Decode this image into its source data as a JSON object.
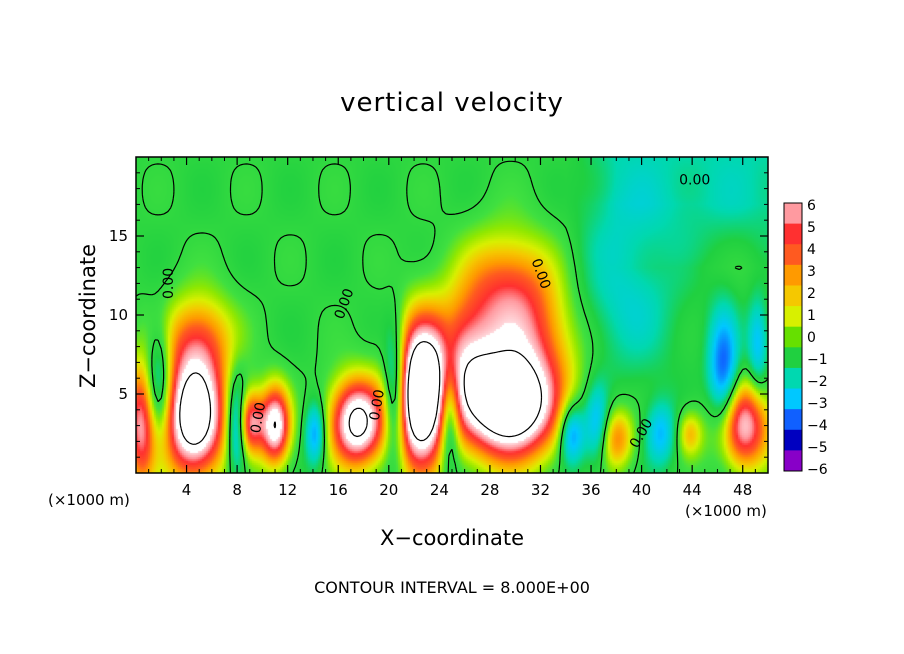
{
  "colors": {
    "background": "#ffffff",
    "field_base": "#33dd44",
    "axis": "#000000"
  },
  "chart_data": {
    "type": "heatmap",
    "title": "vertical velocity",
    "xlabel": "X−coordinate",
    "ylabel": "Z−coordinate",
    "x_unit_left": "(×1000 m)",
    "x_unit_right": "(×1000 m)",
    "contour_note": "CONTOUR INTERVAL = 8.000E+00",
    "xlim": [
      0,
      50
    ],
    "ylim": [
      0,
      20
    ],
    "x_ticks": [
      4,
      8,
      12,
      16,
      20,
      24,
      28,
      32,
      36,
      40,
      44,
      48
    ],
    "y_ticks": [
      5,
      10,
      15
    ],
    "colorbar": {
      "levels": [
        6,
        5,
        4,
        3,
        2,
        1,
        0,
        -1,
        -2,
        -3,
        -4,
        -5,
        -6
      ],
      "colors": [
        "#ff9aa0",
        "#ff3030",
        "#ff5a20",
        "#ff9a00",
        "#f5c800",
        "#d8f000",
        "#66e000",
        "#20d040",
        "#00d8b0",
        "#00c8ff",
        "#1060ff",
        "#0000c0",
        "#8800c8"
      ],
      "labels": [
        "6",
        "5",
        "4",
        "3",
        "2",
        "1",
        "0",
        "−1",
        "−2",
        "−3",
        "−4",
        "−5",
        "−6"
      ]
    },
    "contour_labels": [
      {
        "text": "0.00",
        "x": 44.2,
        "y": 18.5,
        "angle": 0
      },
      {
        "text": "0.00",
        "x": 2.6,
        "y": 12.0,
        "angle": -90
      },
      {
        "text": "0.00",
        "x": 16.5,
        "y": 10.7,
        "angle": -70
      },
      {
        "text": "0.00",
        "x": 32.0,
        "y": 12.6,
        "angle": 70
      },
      {
        "text": "0.00",
        "x": 9.7,
        "y": 3.5,
        "angle": -80
      },
      {
        "text": "0.00",
        "x": 19.1,
        "y": 4.3,
        "angle": -80
      },
      {
        "text": "0.00",
        "x": 40.0,
        "y": 2.5,
        "angle": -60
      }
    ],
    "updraft_cells": [
      {
        "x": 0.4,
        "z": 3.0,
        "w": 6.0,
        "rx": 1.2,
        "rz": 4.0
      },
      {
        "x": 4.6,
        "z": 3.5,
        "w": 10.0,
        "rx": 2.5,
        "rz": 3.8
      },
      {
        "x": 5.0,
        "z": 8.5,
        "w": 4.0,
        "rx": 2.8,
        "rz": 3.0
      },
      {
        "x": 11.0,
        "z": 3.0,
        "w": 8.0,
        "rx": 1.2,
        "rz": 2.5
      },
      {
        "x": 9.0,
        "z": 3.2,
        "w": 6.0,
        "rx": 1.0,
        "rz": 2.0
      },
      {
        "x": 17.5,
        "z": 3.2,
        "w": 9.0,
        "rx": 2.2,
        "rz": 2.8
      },
      {
        "x": 22.5,
        "z": 5.0,
        "w": 12.0,
        "rx": 2.0,
        "rz": 4.5
      },
      {
        "x": 26.0,
        "z": 7.0,
        "w": 5.0,
        "rx": 2.5,
        "rz": 4.0
      },
      {
        "x": 29.5,
        "z": 4.0,
        "w": 9.0,
        "rx": 3.5,
        "rz": 3.2
      },
      {
        "x": 31.0,
        "z": 8.0,
        "w": 5.0,
        "rx": 4.0,
        "rz": 5.0
      },
      {
        "x": 29.0,
        "z": 12.0,
        "w": 3.0,
        "rx": 3.5,
        "rz": 3.5
      },
      {
        "x": 38.0,
        "z": 2.2,
        "w": 4.0,
        "rx": 1.4,
        "rz": 2.0
      },
      {
        "x": 48.0,
        "z": 3.0,
        "w": 7.0,
        "rx": 2.2,
        "rz": 2.8
      },
      {
        "x": 43.8,
        "z": 2.5,
        "w": 3.0,
        "rx": 1.0,
        "rz": 1.5
      }
    ],
    "downdraft_cells": [
      {
        "x": 1.8,
        "z": 5.5,
        "w": -4.0,
        "rx": 1.0,
        "rz": 3.5
      },
      {
        "x": 8.0,
        "z": 3.0,
        "w": -5.0,
        "rx": 0.8,
        "rz": 3.0
      },
      {
        "x": 14.2,
        "z": 2.5,
        "w": -4.0,
        "rx": 0.8,
        "rz": 2.0
      },
      {
        "x": 20.5,
        "z": 5.0,
        "w": -5.5,
        "rx": 0.9,
        "rz": 4.0
      },
      {
        "x": 24.8,
        "z": 4.0,
        "w": -5.0,
        "rx": 0.8,
        "rz": 3.5
      },
      {
        "x": 34.5,
        "z": 2.5,
        "w": -4.5,
        "rx": 1.0,
        "rz": 2.0
      },
      {
        "x": 36.5,
        "z": 3.0,
        "w": -3.5,
        "rx": 1.0,
        "rz": 2.5
      },
      {
        "x": 46.5,
        "z": 6.0,
        "w": -5.0,
        "rx": 1.2,
        "rz": 4.0
      },
      {
        "x": 41.5,
        "z": 2.5,
        "w": -3.0,
        "rx": 1.2,
        "rz": 2.0
      },
      {
        "x": 38.5,
        "z": 11.0,
        "w": -2.0,
        "rx": 4.5,
        "rz": 5.0
      },
      {
        "x": 49.2,
        "z": 8.0,
        "w": -3.0,
        "rx": 0.8,
        "rz": 3.0
      }
    ]
  }
}
